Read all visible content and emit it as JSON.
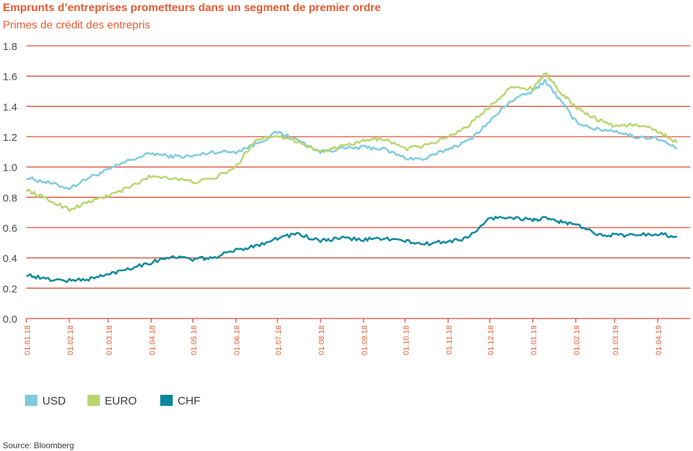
{
  "chart_data": {
    "type": "line",
    "title": "Emprunts d’entreprises prometteurs dans un segment de premier ordre",
    "subtitle": "Primes de crédit des entrepris",
    "source": "Source: Bloomberg",
    "x_ticks": [
      "01.01.18",
      "01.02.18",
      "01.03.18",
      "01.04.18",
      "01.05.18",
      "01.06.18",
      "01.07.18",
      "01.08.18",
      "01.09.18",
      "01.10.18",
      "01.11.18",
      "01.12.18",
      "01.01.19",
      "01.02.19",
      "01.03.19",
      "01.04.19"
    ],
    "y_ticks": [
      "0.0",
      "0.2",
      "0.4",
      "0.6",
      "0.8",
      "1.0",
      "1.2",
      "1.4",
      "1.6",
      "1.8"
    ],
    "ylim": [
      0,
      1.8
    ],
    "grid": "horizontal",
    "legend_position": "bottom-left",
    "x": [
      "2018-01-01",
      "2018-01-15",
      "2018-02-01",
      "2018-02-15",
      "2018-03-01",
      "2018-03-15",
      "2018-04-01",
      "2018-04-15",
      "2018-05-01",
      "2018-05-15",
      "2018-06-01",
      "2018-06-15",
      "2018-07-01",
      "2018-07-15",
      "2018-08-01",
      "2018-08-15",
      "2018-09-01",
      "2018-09-15",
      "2018-10-01",
      "2018-10-15",
      "2018-11-01",
      "2018-11-15",
      "2018-12-01",
      "2018-12-15",
      "2019-01-01",
      "2019-01-10",
      "2019-01-20",
      "2019-02-01",
      "2019-02-15",
      "2019-03-01",
      "2019-03-15",
      "2019-04-01",
      "2019-04-15"
    ],
    "series": [
      {
        "name": "USD",
        "color": "#7ecbdc",
        "values": [
          0.93,
          0.9,
          0.86,
          0.93,
          0.98,
          1.04,
          1.09,
          1.07,
          1.07,
          1.1,
          1.1,
          1.15,
          1.23,
          1.18,
          1.1,
          1.12,
          1.13,
          1.12,
          1.06,
          1.05,
          1.12,
          1.17,
          1.3,
          1.43,
          1.5,
          1.57,
          1.45,
          1.3,
          1.25,
          1.24,
          1.2,
          1.19,
          1.12
        ]
      },
      {
        "name": "EURO",
        "color": "#b8d56f",
        "values": [
          0.85,
          0.79,
          0.72,
          0.77,
          0.81,
          0.86,
          0.94,
          0.93,
          0.9,
          0.92,
          1.0,
          1.18,
          1.21,
          1.17,
          1.1,
          1.13,
          1.17,
          1.19,
          1.12,
          1.14,
          1.2,
          1.27,
          1.4,
          1.52,
          1.52,
          1.62,
          1.5,
          1.4,
          1.32,
          1.27,
          1.28,
          1.24,
          1.16
        ]
      },
      {
        "name": "CHF",
        "color": "#0a8799",
        "values": [
          0.29,
          0.26,
          0.25,
          0.26,
          0.29,
          0.33,
          0.37,
          0.41,
          0.39,
          0.4,
          0.45,
          0.48,
          0.53,
          0.56,
          0.51,
          0.53,
          0.52,
          0.53,
          0.51,
          0.49,
          0.51,
          0.53,
          0.66,
          0.67,
          0.65,
          0.66,
          0.64,
          0.62,
          0.56,
          0.55,
          0.55,
          0.56,
          0.54
        ]
      }
    ]
  },
  "colors": {
    "brand": "#e4572e",
    "grid": "#d9432a",
    "text": "#555555"
  }
}
